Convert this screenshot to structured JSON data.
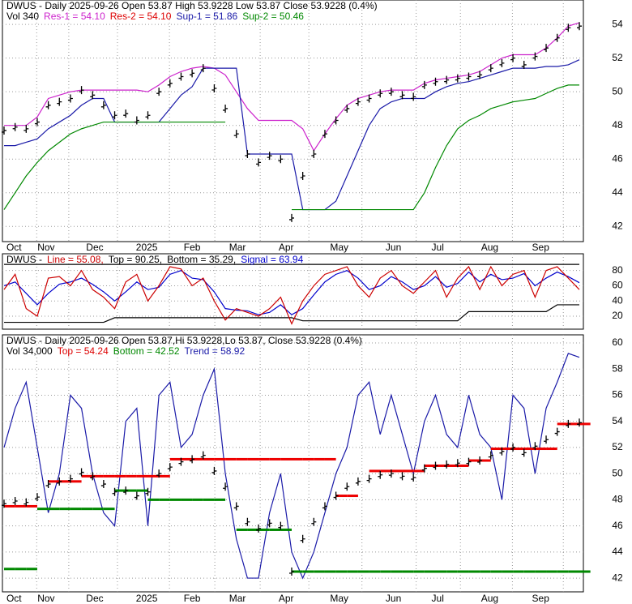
{
  "chart_data": [
    {
      "type": "stock",
      "grid": true,
      "header": [
        [
          {
            "text": "DWUS - Daily 2025-09-26 Open 53.87   High 53.9228   Low 53.87   Close 53.9228 (0.4%)",
            "color": "#000000"
          }
        ],
        [
          {
            "text": "Vol 340",
            "color": "#000000"
          },
          {
            "text": "Res-1 = 54.10",
            "color": "#cc22cc"
          },
          {
            "text": "Res-2 = 54.10",
            "color": "#dd0000"
          },
          {
            "text": "Sup-1 = 51.86",
            "color": "#1a1aa8"
          },
          {
            "text": "Sup-2 = 50.46",
            "color": "#008800"
          }
        ]
      ],
      "xlim": [
        0,
        52
      ],
      "xticks": [
        {
          "value": 0.9,
          "label": "Oct"
        },
        {
          "value": 3.8,
          "label": "Nov"
        },
        {
          "value": 8.2,
          "label": "Dec"
        },
        {
          "value": 12.9,
          "label": "2025"
        },
        {
          "value": 17,
          "label": "Feb"
        },
        {
          "value": 21.1,
          "label": "Mar"
        },
        {
          "value": 25.5,
          "label": "Apr"
        },
        {
          "value": 30.3,
          "label": "May"
        },
        {
          "value": 35.2,
          "label": "Jun"
        },
        {
          "value": 39.2,
          "label": "Jul"
        },
        {
          "value": 43.9,
          "label": "Aug"
        },
        {
          "value": 48.5,
          "label": "Sep"
        }
      ],
      "ylim": [
        41.1,
        55.45
      ],
      "yticks": [
        42,
        44,
        46,
        48,
        50,
        52,
        54
      ],
      "series": [
        {
          "name": "Res-1",
          "style": "line",
          "color": "#cc22cc",
          "values": [
            48.0,
            48.0,
            48.0,
            48.5,
            49.6,
            49.8,
            50.0,
            50.1,
            50.1,
            50.1,
            50.1,
            50.1,
            50.1,
            50.0,
            50.4,
            50.9,
            51.2,
            51.4,
            51.5,
            51.4,
            51.0,
            50.0,
            49.0,
            48.3,
            48.3,
            48.3,
            48.3,
            47.8,
            46.5,
            47.5,
            48.4,
            49.2,
            49.6,
            49.8,
            50.0,
            50.1,
            50.1,
            50.1,
            50.5,
            50.7,
            50.8,
            50.9,
            51.0,
            51.2,
            51.6,
            52.0,
            52.2,
            52.2,
            52.2,
            52.6,
            53.2,
            53.9,
            54.1
          ]
        },
        {
          "name": "Sup-1",
          "style": "line",
          "color": "#1a1aa8",
          "values": [
            46.8,
            46.8,
            47.0,
            47.2,
            47.8,
            48.2,
            48.6,
            49.2,
            49.6,
            49.6,
            48.2,
            48.2,
            48.2,
            48.2,
            48.2,
            49.0,
            49.8,
            50.3,
            51.4,
            51.4,
            51.4,
            51.4,
            46.3,
            46.3,
            46.3,
            46.3,
            46.3,
            43.0,
            43.0,
            43.0,
            43.5,
            45.0,
            46.5,
            48.0,
            49.0,
            49.4,
            49.6,
            49.6,
            49.6,
            50.0,
            50.3,
            50.5,
            50.6,
            50.8,
            51.0,
            51.2,
            51.4,
            51.4,
            51.4,
            51.5,
            51.5,
            51.6,
            51.9
          ]
        },
        {
          "name": "Sup-2",
          "style": "line",
          "color": "#008800",
          "values": [
            43.0,
            44.0,
            45.0,
            45.8,
            46.5,
            47.0,
            47.5,
            47.8,
            48.0,
            48.2,
            48.2,
            48.2,
            48.2,
            48.2,
            48.2,
            48.2,
            48.2,
            48.2,
            48.2,
            48.2,
            48.2,
            null,
            null,
            null,
            null,
            null,
            43.0,
            43.0,
            43.0,
            43.0,
            43.0,
            43.0,
            43.0,
            43.0,
            43.0,
            43.0,
            43.0,
            43.0,
            44.0,
            45.5,
            46.8,
            47.8,
            48.3,
            48.6,
            49.0,
            49.2,
            49.4,
            49.5,
            49.6,
            49.9,
            50.2,
            50.4,
            50.4
          ]
        },
        {
          "name": "Close",
          "style": "bars",
          "color": "#000000",
          "values": [
            47.7,
            47.9,
            47.8,
            48.2,
            49.2,
            49.4,
            49.6,
            50.1,
            49.8,
            49.2,
            48.6,
            48.7,
            48.3,
            48.6,
            50.0,
            50.5,
            50.9,
            51.1,
            51.4,
            50.2,
            49.0,
            47.5,
            46.3,
            45.8,
            46.2,
            46.0,
            42.5,
            45.0,
            46.3,
            47.5,
            48.3,
            49.0,
            49.4,
            49.6,
            49.9,
            50.0,
            49.8,
            49.7,
            50.4,
            50.6,
            50.7,
            50.8,
            50.9,
            51.0,
            51.4,
            51.7,
            52.0,
            51.6,
            52.1,
            52.6,
            53.2,
            53.8,
            53.9
          ]
        }
      ]
    },
    {
      "type": "oscillator",
      "grid": true,
      "header": [
        [
          {
            "text": "DWUS -",
            "color": "#000000"
          },
          {
            "text": "Line = 55.08,",
            "color": "#cc0000"
          },
          {
            "text": "Top = 90.25,",
            "color": "#000000"
          },
          {
            "text": "Bottom = 35.29,",
            "color": "#000000"
          },
          {
            "text": "Signal = 63.94",
            "color": "#0000cc"
          }
        ]
      ],
      "xlim": [
        0,
        52
      ],
      "xticks": [
        {
          "value": 0.9,
          "label": "Oct"
        },
        {
          "value": 3.8,
          "label": "Nov"
        },
        {
          "value": 8.2,
          "label": "Dec"
        },
        {
          "value": 12.9,
          "label": "2025"
        },
        {
          "value": 17,
          "label": "Feb"
        },
        {
          "value": 21.1,
          "label": "Mar"
        },
        {
          "value": 25.5,
          "label": "Apr"
        },
        {
          "value": 30.3,
          "label": "May"
        },
        {
          "value": 35.2,
          "label": "Jun"
        },
        {
          "value": 39.2,
          "label": "Jul"
        },
        {
          "value": 43.9,
          "label": "Aug"
        },
        {
          "value": 48.5,
          "label": "Sep"
        }
      ],
      "ylim": [
        3,
        102
      ],
      "yticks": [
        20,
        40,
        60,
        80
      ],
      "series": [
        {
          "name": "Top",
          "style": "line",
          "color": "#000000",
          "values": [
            88,
            88,
            88,
            88,
            88,
            88,
            88,
            88,
            88,
            88,
            88,
            88,
            88,
            88,
            88,
            88,
            88,
            88,
            88,
            88,
            88,
            88,
            88,
            88,
            88,
            88,
            88,
            88,
            88,
            88,
            88,
            88,
            88,
            88,
            88,
            88,
            88,
            88,
            88,
            88,
            88,
            88,
            88,
            88,
            88,
            88,
            88,
            88,
            88,
            88,
            88,
            88,
            88
          ]
        },
        {
          "name": "Bottom",
          "style": "line",
          "color": "#000000",
          "values": [
            12,
            12,
            12,
            12,
            12,
            12,
            12,
            12,
            12,
            12,
            18,
            18,
            18,
            18,
            18,
            18,
            18,
            18,
            18,
            18,
            18,
            18,
            18,
            18,
            18,
            18,
            18,
            14,
            14,
            14,
            14,
            14,
            14,
            14,
            14,
            14,
            14,
            14,
            14,
            14,
            14,
            14,
            26,
            26,
            26,
            26,
            26,
            26,
            26,
            26,
            35,
            35,
            35
          ]
        },
        {
          "name": "Signal",
          "style": "line",
          "color": "#0000cc",
          "values": [
            60,
            65,
            50,
            35,
            50,
            62,
            65,
            70,
            62,
            52,
            40,
            52,
            65,
            55,
            58,
            75,
            80,
            70,
            68,
            52,
            30,
            28,
            27,
            22,
            25,
            35,
            22,
            30,
            48,
            65,
            75,
            80,
            70,
            55,
            60,
            72,
            65,
            55,
            60,
            72,
            58,
            63,
            78,
            65,
            75,
            68,
            70,
            76,
            60,
            70,
            78,
            72,
            64
          ]
        },
        {
          "name": "Line",
          "style": "line",
          "color": "#cc0000",
          "values": [
            55,
            75,
            30,
            20,
            70,
            72,
            60,
            80,
            55,
            45,
            30,
            65,
            75,
            40,
            60,
            85,
            82,
            60,
            70,
            40,
            15,
            30,
            25,
            20,
            30,
            45,
            10,
            40,
            60,
            75,
            80,
            85,
            60,
            45,
            70,
            80,
            60,
            50,
            65,
            80,
            45,
            70,
            85,
            55,
            85,
            60,
            75,
            80,
            45,
            80,
            85,
            70,
            55
          ]
        }
      ]
    },
    {
      "type": "stock",
      "grid": true,
      "header": [
        [
          {
            "text": "DWUS - Daily 2025-09-26 Open 53.87,Hi 53.9228,Lo 53.87,  Close 53.9228 (0.4%)",
            "color": "#000000"
          }
        ],
        [
          {
            "text": "Vol 34,000",
            "color": "#000000"
          },
          {
            "text": "Top = 54.24",
            "color": "#dd0000"
          },
          {
            "text": "Bottom = 42.52",
            "color": "#008800"
          },
          {
            "text": "Trend = 58.92",
            "color": "#1a1aa8"
          }
        ]
      ],
      "xlim": [
        0,
        52
      ],
      "xticks": [
        {
          "value": 0.9,
          "label": "Oct"
        },
        {
          "value": 3.8,
          "label": "Nov"
        },
        {
          "value": 8.2,
          "label": "Dec"
        },
        {
          "value": 12.9,
          "label": "2025"
        },
        {
          "value": 17,
          "label": "Feb"
        },
        {
          "value": 21.1,
          "label": "Mar"
        },
        {
          "value": 25.5,
          "label": "Apr"
        },
        {
          "value": 30.3,
          "label": "May"
        },
        {
          "value": 35.2,
          "label": "Jun"
        },
        {
          "value": 39.2,
          "label": "Jul"
        },
        {
          "value": 43.9,
          "label": "Aug"
        },
        {
          "value": 48.5,
          "label": "Sep"
        }
      ],
      "ylim": [
        40.95,
        60.62
      ],
      "yticks": [
        42,
        44,
        46,
        48,
        50,
        52,
        54,
        56,
        58,
        60
      ],
      "series": [
        {
          "name": "Trend",
          "style": "line",
          "color": "#1a1aa8",
          "values": [
            52,
            55,
            57,
            52,
            47,
            50,
            56,
            55,
            50,
            47,
            46,
            54,
            55,
            46,
            56,
            57,
            52,
            53,
            56,
            58,
            50,
            45,
            42,
            42,
            47,
            50,
            44,
            42,
            44,
            47,
            50,
            52,
            56,
            57,
            53,
            56,
            53,
            50,
            54,
            56,
            53,
            52,
            56,
            53,
            52,
            48,
            56,
            55,
            50,
            55,
            57,
            59.2,
            58.9
          ]
        },
        {
          "name": "Top",
          "style": "step",
          "color": "#ee0000",
          "values": [
            47.5,
            47.5,
            47.5,
            null,
            49.4,
            49.4,
            49.4,
            49.8,
            49.8,
            49.8,
            49.8,
            49.8,
            49.8,
            49.8,
            49.8,
            51.1,
            51.1,
            51.1,
            51.1,
            51.1,
            51.1,
            51.1,
            51.1,
            51.1,
            51.1,
            51.1,
            51.1,
            51.1,
            51.1,
            51.1,
            48.3,
            48.3,
            null,
            50.2,
            50.2,
            50.2,
            50.2,
            50.2,
            50.6,
            50.6,
            50.6,
            50.6,
            51.0,
            51.0,
            51.9,
            51.9,
            51.9,
            51.9,
            51.9,
            51.9,
            53.8,
            53.8,
            53.8
          ]
        },
        {
          "name": "Bottom",
          "style": "step",
          "color": "#008800",
          "values": [
            42.7,
            42.7,
            42.7,
            47.3,
            47.3,
            47.3,
            47.3,
            47.3,
            47.3,
            47.3,
            48.7,
            48.7,
            48.7,
            48.0,
            48.0,
            48.0,
            48.0,
            48.0,
            48.0,
            48.0,
            null,
            45.7,
            45.7,
            45.7,
            45.7,
            45.7,
            42.5,
            42.5,
            42.5,
            42.5,
            42.5,
            42.5,
            42.5,
            42.5,
            42.5,
            42.5,
            42.5,
            42.5,
            42.5,
            42.5,
            42.5,
            42.5,
            42.5,
            42.5,
            42.5,
            42.5,
            42.5,
            42.5,
            42.5,
            42.5,
            42.5,
            42.5,
            42.5
          ]
        },
        {
          "name": "Close",
          "style": "bars",
          "color": "#000000",
          "values": [
            47.7,
            47.9,
            47.8,
            48.2,
            49.2,
            49.4,
            49.6,
            50.1,
            49.8,
            49.2,
            48.6,
            48.7,
            48.3,
            48.6,
            50.0,
            50.5,
            50.9,
            51.1,
            51.4,
            50.2,
            49.0,
            47.5,
            46.3,
            45.8,
            46.2,
            46.0,
            42.5,
            45.0,
            46.3,
            47.5,
            48.3,
            49.0,
            49.4,
            49.6,
            49.9,
            50.0,
            49.8,
            49.7,
            50.4,
            50.6,
            50.7,
            50.8,
            50.9,
            51.0,
            51.4,
            51.7,
            52.0,
            51.6,
            52.1,
            52.6,
            53.2,
            53.8,
            53.9
          ]
        }
      ]
    }
  ]
}
